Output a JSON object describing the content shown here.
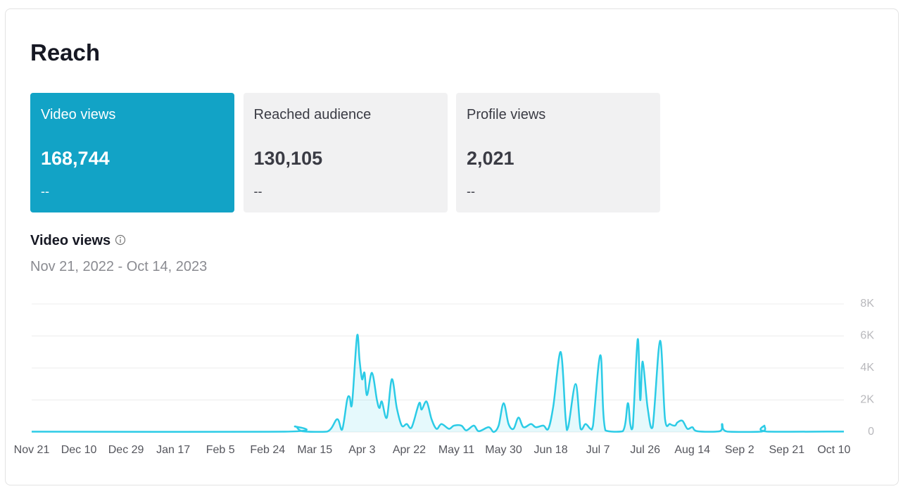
{
  "header": {
    "title": "Reach"
  },
  "cards": [
    {
      "label": "Video views",
      "value": "168,744",
      "change": "--",
      "active": true
    },
    {
      "label": "Reached audience",
      "value": "130,105",
      "change": "--",
      "active": false
    },
    {
      "label": "Profile views",
      "value": "2,021",
      "change": "--",
      "active": false
    }
  ],
  "chart_data": {
    "type": "line",
    "title": "Video views",
    "subtitle": "Nov 21, 2022 - Oct 14, 2023",
    "x": [
      "Nov 21",
      "Mar 3",
      "Mar 7",
      "Mar 10",
      "Mar 20",
      "Mar 24",
      "Mar 26",
      "Mar 28",
      "Mar 29",
      "Mar 30",
      "Apr 1",
      "Apr 2",
      "Apr 3",
      "Apr 4",
      "Apr 5",
      "Apr 7",
      "Apr 9",
      "Apr 10",
      "Apr 11",
      "Apr 13",
      "Apr 15",
      "Apr 17",
      "Apr 19",
      "Apr 21",
      "Apr 23",
      "Apr 26",
      "Apr 27",
      "Apr 29",
      "May 1",
      "May 3",
      "May 5",
      "May 8",
      "May 10",
      "May 13",
      "May 15",
      "May 18",
      "May 20",
      "May 24",
      "May 26",
      "May 28",
      "May 30",
      "Jun 1",
      "Jun 3",
      "Jun 5",
      "Jun 7",
      "Jun 10",
      "Jun 12",
      "Jun 15",
      "Jun 17",
      "Jun 19",
      "Jun 22",
      "Jun 24",
      "Jun 25",
      "Jun 28",
      "Jun 30",
      "Jul 2",
      "Jul 4",
      "Jul 5",
      "Jul 8",
      "Jul 10",
      "Jul 17",
      "Jul 19",
      "Jul 20",
      "Jul 21",
      "Jul 23",
      "Jul 24",
      "Jul 25",
      "Jul 27",
      "Jul 29",
      "Aug 1",
      "Aug 3",
      "Aug 5",
      "Aug 7",
      "Aug 8",
      "Aug 10",
      "Aug 12",
      "Aug 14",
      "Aug 16",
      "Aug 25",
      "Aug 26",
      "Aug 28",
      "Sep 11",
      "Sep 12",
      "Sep 13",
      "Oct 14"
    ],
    "series": [
      {
        "name": "Video views",
        "color": "#2bcbe6",
        "values": [
          20,
          20,
          350,
          50,
          30,
          800,
          150,
          2000,
          2200,
          1800,
          6000,
          4500,
          3300,
          3700,
          2300,
          3700,
          2000,
          1500,
          1900,
          900,
          3300,
          1500,
          400,
          500,
          300,
          1800,
          1400,
          1900,
          800,
          200,
          500,
          200,
          400,
          400,
          100,
          400,
          50,
          300,
          0,
          400,
          1800,
          500,
          200,
          900,
          300,
          500,
          300,
          400,
          200,
          1600,
          5000,
          800,
          300,
          3000,
          200,
          500,
          200,
          400,
          4800,
          100,
          50,
          1800,
          500,
          300,
          5800,
          2000,
          4400,
          1500,
          300,
          5700,
          800,
          500,
          400,
          600,
          700,
          200,
          300,
          50,
          50,
          500,
          30,
          30,
          400,
          30,
          30
        ]
      }
    ],
    "xlim": [
      "Nov 21",
      "Oct 14"
    ],
    "xticks": [
      "Nov 21",
      "Dec 10",
      "Dec 29",
      "Jan 17",
      "Feb 5",
      "Feb 24",
      "Mar 15",
      "Apr 3",
      "Apr 22",
      "May 11",
      "May 30",
      "Jun 18",
      "Jul 7",
      "Jul 26",
      "Aug 14",
      "Sep 2",
      "Sep 21",
      "Oct 10"
    ],
    "ylim": [
      0,
      8000
    ],
    "yticks": [
      0,
      {
        "value": 2000,
        "label": "2K"
      },
      {
        "value": 4000,
        "label": "4K"
      },
      {
        "value": 6000,
        "label": "6K"
      },
      {
        "value": 8000,
        "label": "8K"
      }
    ],
    "grid": true
  }
}
